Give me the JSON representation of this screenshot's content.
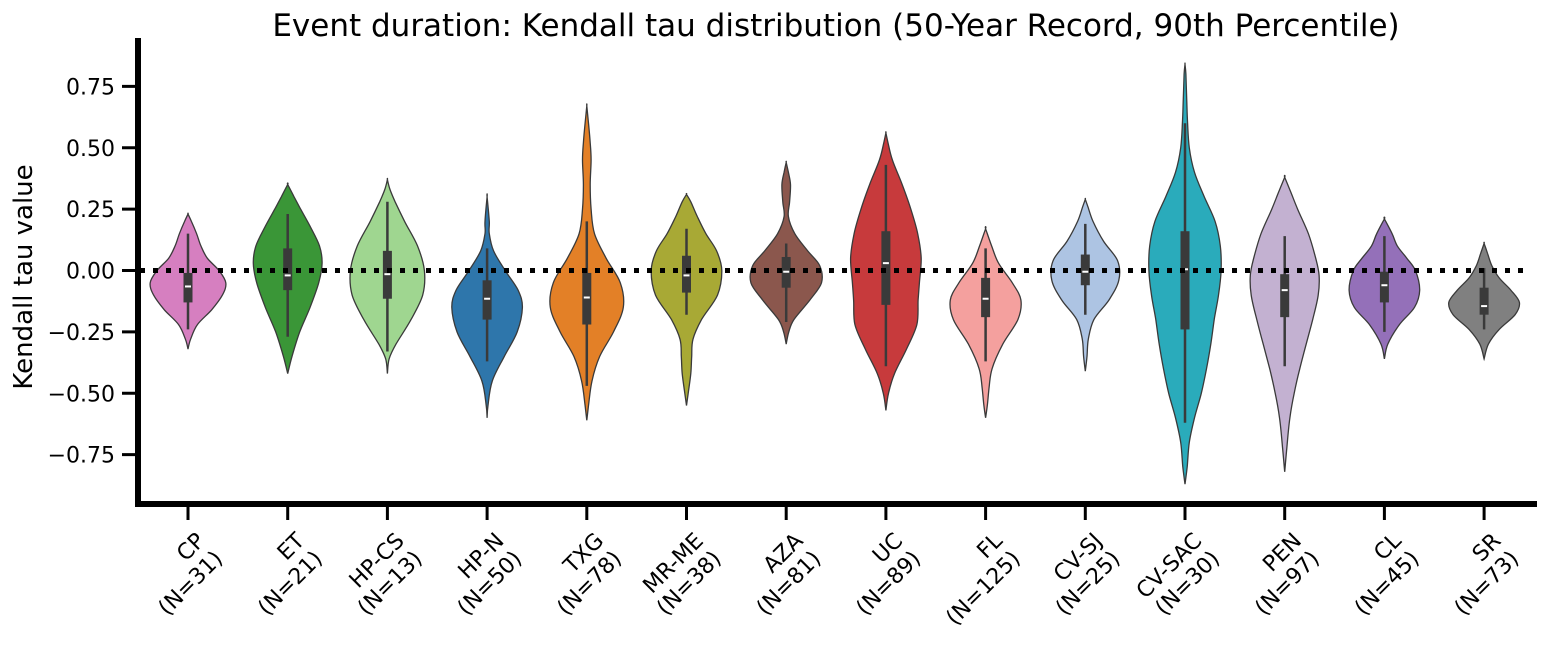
{
  "chart_data": {
    "type": "violin",
    "title": "Event duration: Kendall tau distribution (50-Year Record, 90th Percentile)",
    "xlabel": "",
    "ylabel": "Kendall tau value",
    "ylim": [
      -0.95,
      0.94
    ],
    "yticks": [
      -0.75,
      -0.5,
      -0.25,
      0.0,
      0.25,
      0.5,
      0.75
    ],
    "ytick_labels": [
      "−0.75",
      "−0.50",
      "−0.25",
      "0.00",
      "0.25",
      "0.50",
      "0.75"
    ],
    "reference_line": {
      "y": 0.0,
      "style": "dotted",
      "color": "#000000"
    },
    "grid": false,
    "legend": "none",
    "categories": [
      {
        "label": [
          "CP",
          "(N=31)"
        ],
        "color": "#d67fc0",
        "min": -0.32,
        "max": 0.23,
        "q1": -0.13,
        "median": -0.065,
        "q3": -0.01,
        "wlo": -0.24,
        "whi": 0.15,
        "profile": [
          [
            -0.32,
            0.0
          ],
          [
            -0.28,
            0.06
          ],
          [
            -0.22,
            0.22
          ],
          [
            -0.16,
            0.55
          ],
          [
            -0.1,
            0.8
          ],
          [
            -0.05,
            0.88
          ],
          [
            0.0,
            0.72
          ],
          [
            0.05,
            0.45
          ],
          [
            0.1,
            0.3
          ],
          [
            0.15,
            0.2
          ],
          [
            0.2,
            0.08
          ],
          [
            0.23,
            0.0
          ]
        ]
      },
      {
        "label": [
          "ET",
          "(N=21)"
        ],
        "color": "#3a9637",
        "min": -0.42,
        "max": 0.35,
        "q1": -0.08,
        "median": -0.02,
        "q3": 0.09,
        "wlo": -0.27,
        "whi": 0.23,
        "profile": [
          [
            -0.42,
            0.0
          ],
          [
            -0.35,
            0.1
          ],
          [
            -0.25,
            0.28
          ],
          [
            -0.15,
            0.52
          ],
          [
            -0.05,
            0.72
          ],
          [
            0.03,
            0.8
          ],
          [
            0.1,
            0.74
          ],
          [
            0.18,
            0.52
          ],
          [
            0.25,
            0.3
          ],
          [
            0.3,
            0.15
          ],
          [
            0.35,
            0.0
          ]
        ]
      },
      {
        "label": [
          "HP-CS",
          "(N=13)"
        ],
        "color": "#9fd690",
        "min": -0.42,
        "max": 0.37,
        "q1": -0.115,
        "median": -0.015,
        "q3": 0.08,
        "wlo": -0.33,
        "whi": 0.28,
        "profile": [
          [
            -0.42,
            0.0
          ],
          [
            -0.36,
            0.04
          ],
          [
            -0.3,
            0.2
          ],
          [
            -0.2,
            0.55
          ],
          [
            -0.1,
            0.82
          ],
          [
            0.0,
            0.86
          ],
          [
            0.1,
            0.7
          ],
          [
            0.2,
            0.4
          ],
          [
            0.28,
            0.18
          ],
          [
            0.33,
            0.06
          ],
          [
            0.37,
            0.0
          ]
        ]
      },
      {
        "label": [
          "HP-N",
          "(N=50)"
        ],
        "color": "#2e76ab",
        "min": -0.6,
        "max": 0.3,
        "q1": -0.2,
        "median": -0.115,
        "q3": -0.04,
        "wlo": -0.37,
        "whi": 0.09,
        "profile": [
          [
            -0.6,
            0.0
          ],
          [
            -0.55,
            0.02
          ],
          [
            -0.45,
            0.12
          ],
          [
            -0.35,
            0.4
          ],
          [
            -0.25,
            0.7
          ],
          [
            -0.15,
            0.82
          ],
          [
            -0.08,
            0.72
          ],
          [
            0.0,
            0.42
          ],
          [
            0.08,
            0.15
          ],
          [
            0.15,
            0.05
          ],
          [
            0.2,
            0.05
          ],
          [
            0.3,
            0.0
          ]
        ]
      },
      {
        "label": [
          "TXG",
          "(N=78)"
        ],
        "color": "#e38027",
        "min": -0.61,
        "max": 0.67,
        "q1": -0.22,
        "median": -0.11,
        "q3": -0.01,
        "wlo": -0.47,
        "whi": 0.2,
        "profile": [
          [
            -0.61,
            0.0
          ],
          [
            -0.55,
            0.04
          ],
          [
            -0.45,
            0.12
          ],
          [
            -0.35,
            0.3
          ],
          [
            -0.25,
            0.62
          ],
          [
            -0.15,
            0.85
          ],
          [
            -0.05,
            0.78
          ],
          [
            0.05,
            0.45
          ],
          [
            0.15,
            0.18
          ],
          [
            0.25,
            0.1
          ],
          [
            0.35,
            0.08
          ],
          [
            0.45,
            0.1
          ],
          [
            0.52,
            0.08
          ],
          [
            0.6,
            0.04
          ],
          [
            0.67,
            0.0
          ]
        ]
      },
      {
        "label": [
          "MR-ME",
          "(N=38)"
        ],
        "color": "#a8a935",
        "min": -0.55,
        "max": 0.31,
        "q1": -0.09,
        "median": -0.02,
        "q3": 0.06,
        "wlo": -0.18,
        "whi": 0.17,
        "profile": [
          [
            -0.55,
            0.0
          ],
          [
            -0.5,
            0.04
          ],
          [
            -0.42,
            0.1
          ],
          [
            -0.35,
            0.12
          ],
          [
            -0.28,
            0.15
          ],
          [
            -0.2,
            0.35
          ],
          [
            -0.1,
            0.72
          ],
          [
            0.0,
            0.82
          ],
          [
            0.08,
            0.7
          ],
          [
            0.15,
            0.45
          ],
          [
            0.22,
            0.25
          ],
          [
            0.28,
            0.1
          ],
          [
            0.31,
            0.0
          ]
        ]
      },
      {
        "label": [
          "AZA",
          "(N=81)"
        ],
        "color": "#8b574d",
        "min": -0.3,
        "max": 0.44,
        "q1": -0.07,
        "median": -0.005,
        "q3": 0.055,
        "wlo": -0.21,
        "whi": 0.11,
        "profile": [
          [
            -0.3,
            0.0
          ],
          [
            -0.25,
            0.06
          ],
          [
            -0.2,
            0.18
          ],
          [
            -0.12,
            0.55
          ],
          [
            -0.05,
            0.82
          ],
          [
            0.02,
            0.78
          ],
          [
            0.08,
            0.5
          ],
          [
            0.15,
            0.2
          ],
          [
            0.22,
            0.05
          ],
          [
            0.28,
            0.08
          ],
          [
            0.35,
            0.1
          ],
          [
            0.4,
            0.05
          ],
          [
            0.44,
            0.0
          ]
        ]
      },
      {
        "label": [
          "UC",
          "(N=89)"
        ],
        "color": "#c73a3c",
        "min": -0.57,
        "max": 0.56,
        "q1": -0.14,
        "median": 0.03,
        "q3": 0.16,
        "wlo": -0.39,
        "whi": 0.43,
        "profile": [
          [
            -0.57,
            0.0
          ],
          [
            -0.5,
            0.06
          ],
          [
            -0.42,
            0.2
          ],
          [
            -0.32,
            0.48
          ],
          [
            -0.22,
            0.72
          ],
          [
            -0.12,
            0.75
          ],
          [
            -0.05,
            0.78
          ],
          [
            0.05,
            0.82
          ],
          [
            0.15,
            0.74
          ],
          [
            0.25,
            0.58
          ],
          [
            0.35,
            0.38
          ],
          [
            0.45,
            0.15
          ],
          [
            0.52,
            0.05
          ],
          [
            0.56,
            0.0
          ]
        ]
      },
      {
        "label": [
          "FL",
          "(N=125)"
        ],
        "color": "#f4a09e",
        "min": -0.6,
        "max": 0.17,
        "q1": -0.19,
        "median": -0.115,
        "q3": -0.03,
        "wlo": -0.37,
        "whi": 0.09,
        "profile": [
          [
            -0.6,
            0.0
          ],
          [
            -0.55,
            0.04
          ],
          [
            -0.48,
            0.08
          ],
          [
            -0.4,
            0.15
          ],
          [
            -0.3,
            0.4
          ],
          [
            -0.2,
            0.75
          ],
          [
            -0.12,
            0.82
          ],
          [
            -0.05,
            0.62
          ],
          [
            0.03,
            0.3
          ],
          [
            0.1,
            0.14
          ],
          [
            0.17,
            0.0
          ]
        ]
      },
      {
        "label": [
          "CV-SJ",
          "(N=25)"
        ],
        "color": "#adc4e3",
        "min": -0.41,
        "max": 0.29,
        "q1": -0.06,
        "median": -0.005,
        "q3": 0.065,
        "wlo": -0.18,
        "whi": 0.19,
        "profile": [
          [
            -0.41,
            0.0
          ],
          [
            -0.35,
            0.04
          ],
          [
            -0.28,
            0.07
          ],
          [
            -0.2,
            0.2
          ],
          [
            -0.12,
            0.55
          ],
          [
            -0.04,
            0.78
          ],
          [
            0.04,
            0.75
          ],
          [
            0.12,
            0.42
          ],
          [
            0.2,
            0.18
          ],
          [
            0.26,
            0.06
          ],
          [
            0.29,
            0.0
          ]
        ]
      },
      {
        "label": [
          "CV-SAC",
          "(N=30)"
        ],
        "color": "#2aabbb",
        "min": -0.87,
        "max": 0.84,
        "q1": -0.24,
        "median": 0.005,
        "q3": 0.16,
        "wlo": -0.62,
        "whi": 0.6,
        "profile": [
          [
            -0.87,
            0.0
          ],
          [
            -0.8,
            0.05
          ],
          [
            -0.7,
            0.1
          ],
          [
            -0.6,
            0.22
          ],
          [
            -0.5,
            0.38
          ],
          [
            -0.4,
            0.5
          ],
          [
            -0.3,
            0.6
          ],
          [
            -0.2,
            0.68
          ],
          [
            -0.1,
            0.78
          ],
          [
            0.0,
            0.84
          ],
          [
            0.1,
            0.82
          ],
          [
            0.2,
            0.7
          ],
          [
            0.3,
            0.45
          ],
          [
            0.4,
            0.22
          ],
          [
            0.5,
            0.1
          ],
          [
            0.6,
            0.06
          ],
          [
            0.7,
            0.04
          ],
          [
            0.8,
            0.02
          ],
          [
            0.84,
            0.0
          ]
        ]
      },
      {
        "label": [
          "PEN",
          "(N=97)"
        ],
        "color": "#c3b1d1",
        "min": -0.82,
        "max": 0.38,
        "q1": -0.19,
        "median": -0.08,
        "q3": -0.015,
        "wlo": -0.39,
        "whi": 0.14,
        "profile": [
          [
            -0.82,
            0.0
          ],
          [
            -0.72,
            0.05
          ],
          [
            -0.6,
            0.12
          ],
          [
            -0.5,
            0.22
          ],
          [
            -0.4,
            0.35
          ],
          [
            -0.3,
            0.5
          ],
          [
            -0.2,
            0.65
          ],
          [
            -0.1,
            0.78
          ],
          [
            -0.02,
            0.8
          ],
          [
            0.05,
            0.72
          ],
          [
            0.15,
            0.55
          ],
          [
            0.25,
            0.3
          ],
          [
            0.32,
            0.14
          ],
          [
            0.38,
            0.0
          ]
        ]
      },
      {
        "label": [
          "CL",
          "(N=45)"
        ],
        "color": "#9470b9",
        "min": -0.36,
        "max": 0.21,
        "q1": -0.13,
        "median": -0.06,
        "q3": -0.005,
        "wlo": -0.25,
        "whi": 0.14,
        "profile": [
          [
            -0.36,
            0.0
          ],
          [
            -0.3,
            0.08
          ],
          [
            -0.22,
            0.35
          ],
          [
            -0.15,
            0.7
          ],
          [
            -0.08,
            0.82
          ],
          [
            0.0,
            0.72
          ],
          [
            0.05,
            0.52
          ],
          [
            0.1,
            0.3
          ],
          [
            0.15,
            0.18
          ],
          [
            0.21,
            0.0
          ]
        ]
      },
      {
        "label": [
          "SR",
          "(N=73)"
        ],
        "color": "#808080",
        "min": -0.36,
        "max": 0.11,
        "q1": -0.18,
        "median": -0.145,
        "q3": -0.07,
        "wlo": -0.24,
        "whi": 0.01,
        "profile": [
          [
            -0.36,
            0.0
          ],
          [
            -0.3,
            0.1
          ],
          [
            -0.24,
            0.35
          ],
          [
            -0.18,
            0.72
          ],
          [
            -0.13,
            0.82
          ],
          [
            -0.08,
            0.62
          ],
          [
            -0.03,
            0.35
          ],
          [
            0.02,
            0.18
          ],
          [
            0.07,
            0.08
          ],
          [
            0.11,
            0.0
          ]
        ]
      }
    ]
  }
}
